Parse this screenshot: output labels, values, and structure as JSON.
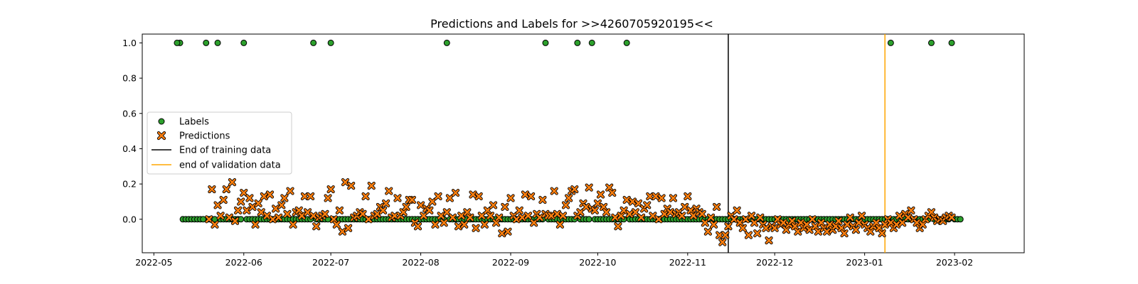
{
  "chart_data": {
    "type": "scatter",
    "title": "Predictions and Labels for >>4260705920195<<",
    "xlabel": "",
    "ylabel": "",
    "xlim": [
      "2022-04-27",
      "2023-02-25"
    ],
    "ylim": [
      -0.19,
      1.05
    ],
    "x_ticks": [
      "2022-05",
      "2022-06",
      "2022-07",
      "2022-08",
      "2022-09",
      "2022-10",
      "2022-11",
      "2022-12",
      "2023-01",
      "2023-02"
    ],
    "y_ticks": [
      "0.0",
      "0.2",
      "0.4",
      "0.6",
      "0.8",
      "1.0"
    ],
    "grid": false,
    "legend": {
      "placement": "center-left",
      "entries": [
        "Labels",
        "Predictions",
        "End of training data",
        "end of validation data"
      ]
    },
    "series_colors": {
      "labels_fill": "#2ca02c",
      "predictions_fill": "#ff7f0e",
      "training_line": "#000000",
      "validation_line": "#ffa500"
    },
    "vlines": [
      {
        "name": "End of training data",
        "date": "2022-11-15",
        "color": "#000000"
      },
      {
        "name": "end of validation data",
        "date": "2023-01-08",
        "color": "#ffa500"
      }
    ],
    "date_range": {
      "start": "2022-05-10",
      "end": "2023-02-03"
    },
    "label_positive_dates": [
      "2022-05-09",
      "2022-05-10",
      "2022-05-19",
      "2022-05-23",
      "2022-06-01",
      "2022-06-25",
      "2022-07-01",
      "2022-08-10",
      "2022-09-13",
      "2022-09-24",
      "2022-09-29",
      "2022-10-11",
      "2023-01-10",
      "2023-01-24",
      "2023-01-31"
    ],
    "predictions": [
      [
        "2022-05-20",
        0.0
      ],
      [
        "2022-05-21",
        0.17
      ],
      [
        "2022-05-22",
        -0.03
      ],
      [
        "2022-05-23",
        0.08
      ],
      [
        "2022-05-24",
        0.02
      ],
      [
        "2022-05-25",
        0.11
      ],
      [
        "2022-05-26",
        0.17
      ],
      [
        "2022-05-27",
        0.01
      ],
      [
        "2022-05-28",
        0.21
      ],
      [
        "2022-05-29",
        -0.01
      ],
      [
        "2022-05-30",
        0.05
      ],
      [
        "2022-05-31",
        0.1
      ],
      [
        "2022-06-01",
        0.15
      ],
      [
        "2022-06-02",
        0.05
      ],
      [
        "2022-06-03",
        0.12
      ],
      [
        "2022-06-04",
        0.07
      ],
      [
        "2022-06-05",
        -0.03
      ],
      [
        "2022-06-06",
        0.09
      ],
      [
        "2022-06-07",
        0.04
      ],
      [
        "2022-06-08",
        0.13
      ],
      [
        "2022-06-09",
        0.02
      ],
      [
        "2022-06-10",
        0.14
      ],
      [
        "2022-06-11",
        0.0
      ],
      [
        "2022-06-12",
        0.06
      ],
      [
        "2022-06-13",
        0.01
      ],
      [
        "2022-06-14",
        0.08
      ],
      [
        "2022-06-15",
        0.12
      ],
      [
        "2022-06-16",
        0.03
      ],
      [
        "2022-06-17",
        0.16
      ],
      [
        "2022-06-18",
        -0.03
      ],
      [
        "2022-06-19",
        0.04
      ],
      [
        "2022-06-20",
        0.05
      ],
      [
        "2022-06-21",
        0.02
      ],
      [
        "2022-06-22",
        0.13
      ],
      [
        "2022-06-23",
        0.04
      ],
      [
        "2022-06-24",
        0.13
      ],
      [
        "2022-06-25",
        0.02
      ],
      [
        "2022-06-26",
        -0.04
      ],
      [
        "2022-06-27",
        0.01
      ],
      [
        "2022-06-28",
        0.02
      ],
      [
        "2022-06-29",
        0.03
      ],
      [
        "2022-06-30",
        0.12
      ],
      [
        "2022-07-01",
        0.17
      ],
      [
        "2022-07-02",
        0.0
      ],
      [
        "2022-07-03",
        -0.03
      ],
      [
        "2022-07-04",
        0.05
      ],
      [
        "2022-07-05",
        -0.07
      ],
      [
        "2022-07-06",
        0.21
      ],
      [
        "2022-07-07",
        -0.05
      ],
      [
        "2022-07-08",
        0.19
      ],
      [
        "2022-07-09",
        0.01
      ],
      [
        "2022-07-10",
        0.02
      ],
      [
        "2022-07-11",
        0.04
      ],
      [
        "2022-07-12",
        0.03
      ],
      [
        "2022-07-13",
        0.13
      ],
      [
        "2022-07-14",
        0.0
      ],
      [
        "2022-07-15",
        0.19
      ],
      [
        "2022-07-16",
        0.02
      ],
      [
        "2022-07-17",
        0.03
      ],
      [
        "2022-07-18",
        0.07
      ],
      [
        "2022-07-19",
        0.05
      ],
      [
        "2022-07-20",
        0.09
      ],
      [
        "2022-07-21",
        0.16
      ],
      [
        "2022-07-22",
        0.01
      ],
      [
        "2022-07-23",
        0.02
      ],
      [
        "2022-07-24",
        0.12
      ],
      [
        "2022-07-25",
        0.02
      ],
      [
        "2022-07-26",
        0.04
      ],
      [
        "2022-07-27",
        0.07
      ],
      [
        "2022-07-28",
        0.11
      ],
      [
        "2022-07-29",
        0.11
      ],
      [
        "2022-07-30",
        -0.02
      ],
      [
        "2022-07-31",
        -0.04
      ],
      [
        "2022-08-01",
        0.08
      ],
      [
        "2022-08-02",
        0.02
      ],
      [
        "2022-08-03",
        0.06
      ],
      [
        "2022-08-04",
        0.05
      ],
      [
        "2022-08-05",
        0.1
      ],
      [
        "2022-08-06",
        -0.03
      ],
      [
        "2022-08-07",
        0.13
      ],
      [
        "2022-08-08",
        0.02
      ],
      [
        "2022-08-09",
        -0.02
      ],
      [
        "2022-08-10",
        0.04
      ],
      [
        "2022-08-11",
        0.12
      ],
      [
        "2022-08-12",
        0.01
      ],
      [
        "2022-08-13",
        0.15
      ],
      [
        "2022-08-14",
        -0.04
      ],
      [
        "2022-08-15",
        0.02
      ],
      [
        "2022-08-16",
        -0.03
      ],
      [
        "2022-08-17",
        0.04
      ],
      [
        "2022-08-18",
        0.01
      ],
      [
        "2022-08-19",
        0.14
      ],
      [
        "2022-08-20",
        -0.05
      ],
      [
        "2022-08-21",
        0.13
      ],
      [
        "2022-08-22",
        0.02
      ],
      [
        "2022-08-23",
        -0.03
      ],
      [
        "2022-08-24",
        0.05
      ],
      [
        "2022-08-25",
        0.02
      ],
      [
        "2022-08-26",
        0.08
      ],
      [
        "2022-08-27",
        -0.02
      ],
      [
        "2022-08-28",
        0.01
      ],
      [
        "2022-08-29",
        -0.08
      ],
      [
        "2022-08-30",
        0.07
      ],
      [
        "2022-08-31",
        -0.07
      ],
      [
        "2022-09-01",
        0.12
      ],
      [
        "2022-09-02",
        0.02
      ],
      [
        "2022-09-03",
        0.0
      ],
      [
        "2022-09-04",
        0.05
      ],
      [
        "2022-09-05",
        0.01
      ],
      [
        "2022-09-06",
        0.14
      ],
      [
        "2022-09-07",
        0.02
      ],
      [
        "2022-09-08",
        0.13
      ],
      [
        "2022-09-09",
        -0.02
      ],
      [
        "2022-09-10",
        0.03
      ],
      [
        "2022-09-11",
        0.01
      ],
      [
        "2022-09-12",
        0.11
      ],
      [
        "2022-09-13",
        0.03
      ],
      [
        "2022-09-14",
        0.02
      ],
      [
        "2022-09-15",
        0.02
      ],
      [
        "2022-09-16",
        0.16
      ],
      [
        "2022-09-17",
        0.03
      ],
      [
        "2022-09-18",
        -0.03
      ],
      [
        "2022-09-19",
        0.02
      ],
      [
        "2022-09-20",
        0.08
      ],
      [
        "2022-09-21",
        0.12
      ],
      [
        "2022-09-22",
        0.16
      ],
      [
        "2022-09-23",
        0.17
      ],
      [
        "2022-09-24",
        0.02
      ],
      [
        "2022-09-25",
        0.04
      ],
      [
        "2022-09-26",
        0.09
      ],
      [
        "2022-09-27",
        0.07
      ],
      [
        "2022-09-28",
        0.18
      ],
      [
        "2022-09-29",
        0.06
      ],
      [
        "2022-09-30",
        0.05
      ],
      [
        "2022-10-01",
        0.09
      ],
      [
        "2022-10-02",
        0.14
      ],
      [
        "2022-10-03",
        0.07
      ],
      [
        "2022-10-04",
        0.04
      ],
      [
        "2022-10-05",
        0.18
      ],
      [
        "2022-10-06",
        0.15
      ],
      [
        "2022-10-07",
        0.01
      ],
      [
        "2022-10-08",
        -0.04
      ],
      [
        "2022-10-09",
        0.02
      ],
      [
        "2022-10-10",
        0.05
      ],
      [
        "2022-10-11",
        0.11
      ],
      [
        "2022-10-12",
        0.03
      ],
      [
        "2022-10-13",
        0.1
      ],
      [
        "2022-10-14",
        0.04
      ],
      [
        "2022-10-15",
        0.09
      ],
      [
        "2022-10-16",
        0.01
      ],
      [
        "2022-10-17",
        0.06
      ],
      [
        "2022-10-18",
        0.08
      ],
      [
        "2022-10-19",
        0.13
      ],
      [
        "2022-10-20",
        0.02
      ],
      [
        "2022-10-21",
        0.13
      ],
      [
        "2022-10-22",
        0.0
      ],
      [
        "2022-10-23",
        0.12
      ],
      [
        "2022-10-24",
        0.03
      ],
      [
        "2022-10-25",
        0.06
      ],
      [
        "2022-10-26",
        0.04
      ],
      [
        "2022-10-27",
        0.12
      ],
      [
        "2022-10-28",
        0.03
      ],
      [
        "2022-10-29",
        0.04
      ],
      [
        "2022-10-30",
        0.02
      ],
      [
        "2022-10-31",
        0.07
      ],
      [
        "2022-11-01",
        0.13
      ],
      [
        "2022-11-02",
        0.05
      ],
      [
        "2022-11-03",
        0.02
      ],
      [
        "2022-11-04",
        0.06
      ],
      [
        "2022-11-05",
        0.04
      ],
      [
        "2022-11-06",
        0.03
      ],
      [
        "2022-11-07",
        -0.02
      ],
      [
        "2022-11-08",
        -0.07
      ],
      [
        "2022-11-09",
        0.01
      ],
      [
        "2022-11-10",
        -0.03
      ],
      [
        "2022-11-11",
        0.07
      ],
      [
        "2022-11-12",
        -0.09
      ],
      [
        "2022-11-13",
        -0.13
      ],
      [
        "2022-11-14",
        -0.09
      ],
      [
        "2022-11-15",
        -0.04
      ],
      [
        "2022-11-16",
        0.02
      ],
      [
        "2022-11-17",
        0.0
      ],
      [
        "2022-11-18",
        0.05
      ],
      [
        "2022-11-19",
        -0.02
      ],
      [
        "2022-11-20",
        -0.05
      ],
      [
        "2022-11-21",
        0.0
      ],
      [
        "2022-11-22",
        -0.09
      ],
      [
        "2022-11-23",
        0.02
      ],
      [
        "2022-11-24",
        -0.02
      ],
      [
        "2022-11-25",
        -0.08
      ],
      [
        "2022-11-26",
        0.01
      ],
      [
        "2022-11-27",
        -0.03
      ],
      [
        "2022-11-28",
        -0.05
      ],
      [
        "2022-11-29",
        -0.12
      ],
      [
        "2022-11-30",
        -0.04
      ],
      [
        "2022-12-01",
        -0.05
      ],
      [
        "2022-12-02",
        0.0
      ],
      [
        "2022-12-03",
        -0.03
      ],
      [
        "2022-12-04",
        -0.02
      ],
      [
        "2022-12-05",
        -0.06
      ],
      [
        "2022-12-06",
        -0.03
      ],
      [
        "2022-12-07",
        -0.01
      ],
      [
        "2022-12-08",
        -0.04
      ],
      [
        "2022-12-09",
        -0.07
      ],
      [
        "2022-12-10",
        -0.02
      ],
      [
        "2022-12-11",
        -0.05
      ],
      [
        "2022-12-12",
        -0.03
      ],
      [
        "2022-12-13",
        -0.06
      ],
      [
        "2022-12-14",
        0.0
      ],
      [
        "2022-12-15",
        -0.04
      ],
      [
        "2022-12-16",
        -0.07
      ],
      [
        "2022-12-17",
        -0.02
      ],
      [
        "2022-12-18",
        -0.05
      ],
      [
        "2022-12-19",
        -0.07
      ],
      [
        "2022-12-20",
        -0.03
      ],
      [
        "2022-12-21",
        -0.06
      ],
      [
        "2022-12-22",
        -0.04
      ],
      [
        "2022-12-23",
        -0.01
      ],
      [
        "2022-12-24",
        -0.05
      ],
      [
        "2022-12-25",
        -0.08
      ],
      [
        "2022-12-26",
        -0.03
      ],
      [
        "2022-12-27",
        0.01
      ],
      [
        "2022-12-28",
        -0.04
      ],
      [
        "2022-12-29",
        -0.06
      ],
      [
        "2022-12-30",
        -0.02
      ],
      [
        "2022-12-31",
        0.02
      ],
      [
        "2023-01-01",
        -0.03
      ],
      [
        "2023-01-02",
        -0.05
      ],
      [
        "2023-01-03",
        -0.07
      ],
      [
        "2023-01-04",
        -0.04
      ],
      [
        "2023-01-05",
        -0.02
      ],
      [
        "2023-01-06",
        -0.05
      ],
      [
        "2023-01-07",
        -0.08
      ],
      [
        "2023-01-08",
        -0.03
      ],
      [
        "2023-01-09",
        0.0
      ],
      [
        "2023-01-10",
        -0.02
      ],
      [
        "2023-01-11",
        -0.05
      ],
      [
        "2023-01-12",
        -0.03
      ],
      [
        "2023-01-13",
        0.02
      ],
      [
        "2023-01-14",
        -0.02
      ],
      [
        "2023-01-15",
        0.03
      ],
      [
        "2023-01-16",
        0.01
      ],
      [
        "2023-01-17",
        0.05
      ],
      [
        "2023-01-18",
        0.0
      ],
      [
        "2023-01-19",
        -0.02
      ],
      [
        "2023-01-20",
        -0.05
      ],
      [
        "2023-01-21",
        -0.03
      ],
      [
        "2023-01-22",
        0.0
      ],
      [
        "2023-01-23",
        0.02
      ],
      [
        "2023-01-24",
        0.04
      ],
      [
        "2023-01-25",
        0.01
      ],
      [
        "2023-01-26",
        -0.01
      ],
      [
        "2023-01-27",
        0.0
      ],
      [
        "2023-01-28",
        -0.01
      ],
      [
        "2023-01-29",
        0.01
      ],
      [
        "2023-01-30",
        0.02
      ],
      [
        "2023-01-31",
        0.01
      ]
    ]
  }
}
